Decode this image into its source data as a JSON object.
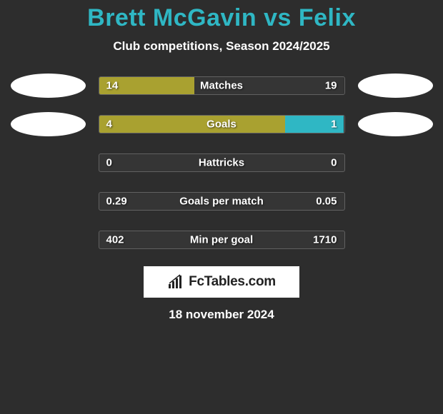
{
  "title": {
    "player1": "Brett McGavin",
    "vs": "vs",
    "player2": "Felix",
    "color": "#2fb7c4"
  },
  "subtitle": "Club competitions, Season 2024/2025",
  "left_oval_color": "#ffffff",
  "right_oval_color": "#ffffff",
  "bar_colors": {
    "left": "#a9a130",
    "right_faint": "rgba(255,255,255,0.04)",
    "right_teal": "#2fb7c4"
  },
  "stats": [
    {
      "label": "Matches",
      "left_val": "14",
      "right_val": "19",
      "left_pct": 39,
      "right_color": "rgba(255,255,255,0.04)",
      "show_ovals": true
    },
    {
      "label": "Goals",
      "left_val": "4",
      "right_val": "1",
      "left_pct": 76,
      "right_color": "#2fb7c4",
      "show_ovals": true
    },
    {
      "label": "Hattricks",
      "left_val": "0",
      "right_val": "0",
      "left_pct": 0,
      "right_color": "rgba(255,255,255,0.04)",
      "show_ovals": false
    },
    {
      "label": "Goals per match",
      "left_val": "0.29",
      "right_val": "0.05",
      "left_pct": 0,
      "right_color": "rgba(255,255,255,0.04)",
      "show_ovals": false
    },
    {
      "label": "Min per goal",
      "left_val": "402",
      "right_val": "1710",
      "left_pct": 0,
      "right_color": "rgba(255,255,255,0.04)",
      "show_ovals": false
    }
  ],
  "logo_text": "FcTables.com",
  "date": "18 november 2024",
  "background_color": "#2d2d2d",
  "text_color": "#ffffff",
  "label_fontsize": 15,
  "title_fontsize": 34
}
